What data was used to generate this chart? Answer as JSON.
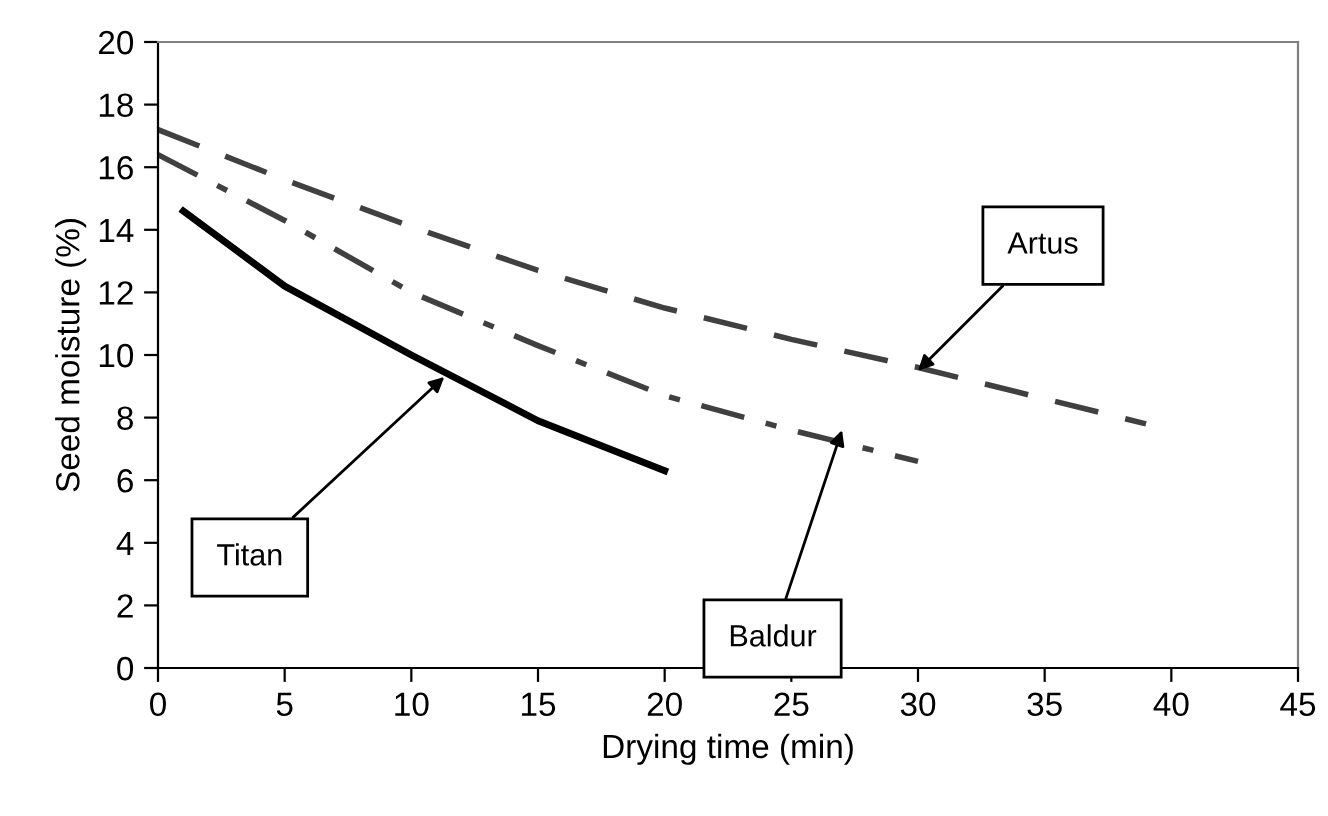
{
  "chart_data": {
    "type": "line",
    "xlabel": "Drying time (min)",
    "ylabel": "Seed moisture (%)",
    "xlim": [
      0,
      45
    ],
    "xticks": [
      0,
      5,
      10,
      15,
      20,
      25,
      30,
      35,
      40,
      45
    ],
    "ylim": [
      0,
      20
    ],
    "yticks": [
      0,
      2,
      4,
      6,
      8,
      10,
      12,
      14,
      16,
      18,
      20
    ],
    "grid": false,
    "legend": false,
    "marker": "none",
    "series": [
      {
        "color": "#000000",
        "line_style": "solid",
        "x": [
          1,
          5,
          10,
          15,
          20
        ],
        "values": [
          14.6,
          12.2,
          10.0,
          7.9,
          6.3
        ]
      },
      {
        "color": "#404040",
        "line_style": "dashdot",
        "x": [
          0,
          5,
          10,
          15,
          20,
          25,
          30
        ],
        "values": [
          16.4,
          14.3,
          12.0,
          10.3,
          8.7,
          7.6,
          6.6
        ]
      },
      {
        "color": "#404040",
        "line_style": "dashed",
        "x": [
          0,
          5,
          10,
          15,
          20,
          25,
          30,
          35,
          39
        ],
        "values": [
          17.2,
          15.6,
          14.1,
          12.7,
          11.5,
          10.5,
          9.6,
          8.6,
          7.8
        ]
      }
    ],
    "annotations": [
      {
        "text": "Titan",
        "x": 11.3,
        "y": 9.3
      },
      {
        "text": "Baldur",
        "x": 27,
        "y": 7.6
      },
      {
        "text": "Artus",
        "x": 30,
        "y": 9.5
      }
    ]
  }
}
